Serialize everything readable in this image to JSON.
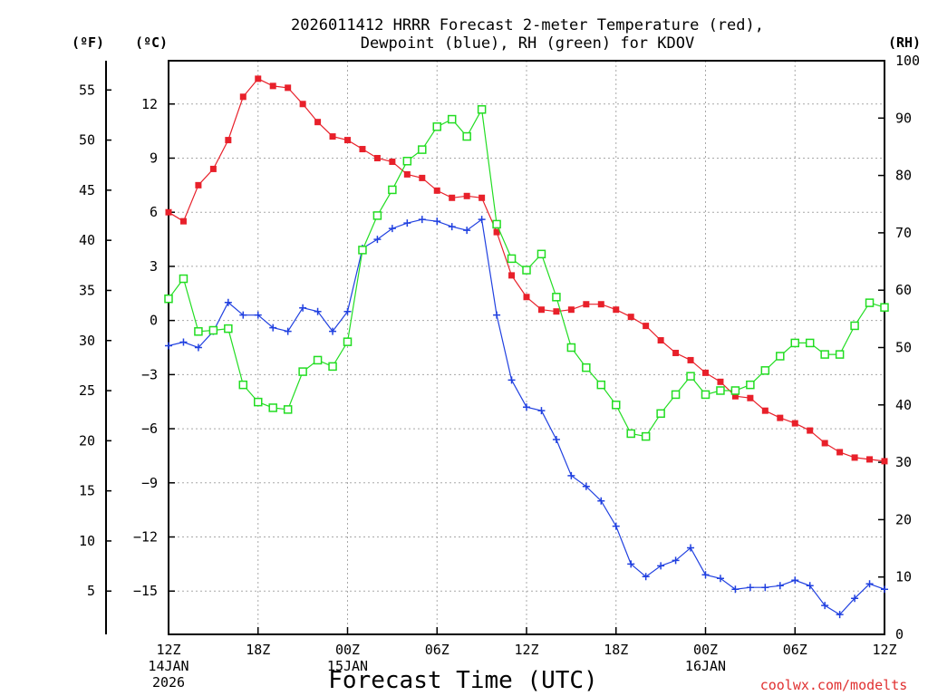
{
  "chart_data": {
    "type": "line",
    "title_line1": "2026011412 HRRR Forecast 2-meter Temperature (red),",
    "title_line2": "Dewpoint (blue), RH (green) for KDOV",
    "xlabel": "Forecast Time (UTC)",
    "credit": "coolwx.com/modelts",
    "unit_f": "(ºF)",
    "unit_c": "(ºC)",
    "unit_rh": "(RH)",
    "x_hours": [
      0,
      1,
      2,
      3,
      4,
      5,
      6,
      7,
      8,
      9,
      10,
      11,
      12,
      13,
      14,
      15,
      16,
      17,
      18,
      19,
      20,
      21,
      22,
      23,
      24,
      25,
      26,
      27,
      28,
      29,
      30,
      31,
      32,
      33,
      34,
      35,
      36,
      37,
      38,
      39,
      40,
      41,
      42,
      43,
      44,
      45,
      46,
      47,
      48
    ],
    "xlim": [
      0,
      48
    ],
    "x_ticks": [
      {
        "hour": 0,
        "label": "12Z",
        "sub1": "14JAN",
        "sub2": "2026"
      },
      {
        "hour": 6,
        "label": "18Z",
        "sub1": "",
        "sub2": ""
      },
      {
        "hour": 12,
        "label": "00Z",
        "sub1": "15JAN",
        "sub2": ""
      },
      {
        "hour": 18,
        "label": "06Z",
        "sub1": "",
        "sub2": ""
      },
      {
        "hour": 24,
        "label": "12Z",
        "sub1": "",
        "sub2": ""
      },
      {
        "hour": 30,
        "label": "18Z",
        "sub1": "",
        "sub2": ""
      },
      {
        "hour": 36,
        "label": "00Z",
        "sub1": "16JAN",
        "sub2": ""
      },
      {
        "hour": 42,
        "label": "06Z",
        "sub1": "",
        "sub2": ""
      },
      {
        "hour": 48,
        "label": "12Z",
        "sub1": "",
        "sub2": ""
      }
    ],
    "c_axis": {
      "ylim": [
        -17.4,
        14.4
      ],
      "ticks": [
        12,
        9,
        6,
        3,
        0,
        -3,
        -6,
        -9,
        -12,
        -15
      ],
      "labels": [
        "12",
        "9",
        "6",
        "3",
        "0",
        "−3",
        "−6",
        "−9",
        "−12",
        "−15"
      ]
    },
    "f_axis": {
      "ticks": [
        55,
        50,
        45,
        40,
        35,
        30,
        25,
        20,
        15,
        10,
        5
      ],
      "labels": [
        "55",
        "50",
        "45",
        "40",
        "35",
        "30",
        "25",
        "20",
        "15",
        "10",
        "5"
      ]
    },
    "rh_axis": {
      "ylim": [
        0,
        100
      ],
      "ticks": [
        100,
        90,
        80,
        70,
        60,
        50,
        40,
        30,
        20,
        10,
        0
      ],
      "labels": [
        "100",
        "90",
        "80",
        "70",
        "60",
        "50",
        "40",
        "30",
        "20",
        "10",
        "0"
      ]
    },
    "series": [
      {
        "name": "Temperature",
        "axis": "c",
        "color": "#e8202a",
        "marker": "filled-square",
        "values": [
          6.0,
          5.5,
          7.5,
          8.4,
          10.0,
          12.4,
          13.4,
          13.0,
          12.9,
          12.0,
          11.0,
          10.2,
          10.0,
          9.5,
          9.0,
          8.8,
          8.1,
          7.9,
          7.2,
          6.8,
          6.9,
          6.8,
          4.9,
          2.5,
          1.3,
          0.6,
          0.5,
          0.6,
          0.9,
          0.9,
          0.6,
          0.2,
          -0.3,
          -1.1,
          -1.8,
          -2.2,
          -2.9,
          -3.4,
          -4.2,
          -4.3,
          -5.0,
          -5.4,
          -5.7,
          -6.1,
          -6.8,
          -7.3,
          -7.6,
          -7.7,
          -7.8
        ]
      },
      {
        "name": "Dewpoint",
        "axis": "c",
        "color": "#2040e0",
        "marker": "plus",
        "values": [
          -1.4,
          -1.2,
          -1.5,
          -0.6,
          1.0,
          0.3,
          0.3,
          -0.4,
          -0.6,
          0.7,
          0.5,
          -0.6,
          0.5,
          4.0,
          4.5,
          5.1,
          5.4,
          5.6,
          5.5,
          5.2,
          5.0,
          5.6,
          0.3,
          -3.3,
          -4.8,
          -5.0,
          -6.6,
          -8.6,
          -9.2,
          -10.0,
          -11.4,
          -13.5,
          -14.2,
          -13.6,
          -13.3,
          -12.6,
          -14.1,
          -14.3,
          -14.9,
          -14.8,
          -14.8,
          -14.7,
          -14.4,
          -14.7,
          -15.8,
          -16.3,
          -15.4,
          -14.6,
          -14.9
        ]
      },
      {
        "name": "RH",
        "axis": "rh",
        "color": "#22dd22",
        "marker": "open-square",
        "values": [
          58.5,
          62.0,
          52.8,
          53.0,
          53.3,
          43.5,
          40.5,
          39.5,
          39.2,
          45.8,
          47.8,
          46.7,
          51.0,
          67.0,
          73.0,
          77.5,
          82.5,
          84.5,
          88.5,
          89.8,
          86.8,
          91.5,
          71.5,
          65.5,
          63.5,
          66.3,
          58.8,
          50.0,
          46.5,
          43.5,
          40.0,
          35.0,
          34.5,
          38.5,
          41.8,
          45.0,
          41.8,
          42.5,
          42.5,
          43.5,
          46.0,
          48.5,
          50.8,
          50.8,
          48.8,
          48.8,
          53.8,
          57.8,
          57.0
        ]
      }
    ]
  }
}
